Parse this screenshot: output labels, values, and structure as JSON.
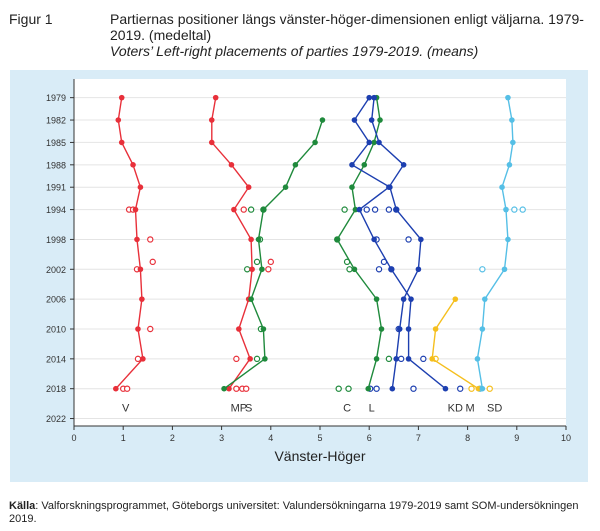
{
  "figure_label": "Figur 1",
  "title_sv": "Partiernas positioner längs vänster-höger-dimensionen enligt väljarna. 1979-2019. (medeltal)",
  "title_en": "Voters’ Left-right placements of parties 1979-2019. (means)",
  "source_label": "Källa",
  "source_text": ": Valforskningsprogrammet, Göteborgs universitet: Valundersökningarna 1979-2019 samt SOM-undersökningen 2019.",
  "chart_data": {
    "type": "line",
    "title": "Partiernas positioner längs vänster-höger-dimensionen enligt väljarna. 1979-2019. (medeltal)",
    "xlabel": "Vänster-Höger",
    "ylabel": "",
    "xlim": [
      0,
      10
    ],
    "ylim": [
      1976.5,
      2023
    ],
    "x_ticks": [
      0,
      1,
      2,
      3,
      4,
      5,
      6,
      7,
      8,
      9,
      10
    ],
    "y_ticks": [
      1979,
      1982,
      1985,
      1988,
      1991,
      1994,
      1998,
      2002,
      2006,
      2010,
      2014,
      2018,
      2022
    ],
    "series": [
      {
        "name": "V",
        "color": "#e8303a",
        "label_x": 1.05,
        "points": [
          [
            0.97,
            1979
          ],
          [
            0.9,
            1982
          ],
          [
            0.97,
            1985
          ],
          [
            1.2,
            1988
          ],
          [
            1.35,
            1991
          ],
          [
            1.25,
            1994
          ],
          [
            1.28,
            1998
          ],
          [
            1.35,
            2002
          ],
          [
            1.38,
            2006
          ],
          [
            1.3,
            2010
          ],
          [
            1.4,
            2014
          ],
          [
            0.85,
            2018
          ]
        ]
      },
      {
        "name": "MP",
        "color": "#e8303a",
        "label_x": 3.35,
        "points": [
          [
            2.88,
            1979
          ],
          [
            2.8,
            1982
          ],
          [
            2.8,
            1985
          ],
          [
            3.2,
            1988
          ],
          [
            3.55,
            1991
          ],
          [
            3.25,
            1994
          ],
          [
            3.6,
            1998
          ],
          [
            3.62,
            2002
          ],
          [
            3.55,
            2006
          ],
          [
            3.35,
            2010
          ],
          [
            3.58,
            2014
          ],
          [
            3.15,
            2018
          ]
        ]
      },
      {
        "name": "S",
        "color": "#1f8a3c",
        "label_x": 3.55,
        "points": [
          [
            5.05,
            1982
          ],
          [
            4.9,
            1985
          ],
          [
            4.5,
            1988
          ],
          [
            4.3,
            1991
          ],
          [
            3.85,
            1994
          ],
          [
            3.75,
            1998
          ],
          [
            3.82,
            2002
          ],
          [
            3.6,
            2006
          ],
          [
            3.85,
            2010
          ],
          [
            3.88,
            2014
          ],
          [
            3.05,
            2018
          ]
        ]
      },
      {
        "name": "C",
        "color": "#1f8a3c",
        "label_x": 5.55,
        "points": [
          [
            6.15,
            1979
          ],
          [
            6.22,
            1982
          ],
          [
            6.1,
            1985
          ],
          [
            5.9,
            1988
          ],
          [
            5.65,
            1991
          ],
          [
            5.72,
            1994
          ],
          [
            5.35,
            1998
          ],
          [
            5.7,
            2002
          ],
          [
            6.15,
            2006
          ],
          [
            6.25,
            2010
          ],
          [
            6.15,
            2014
          ],
          [
            5.98,
            2018
          ]
        ]
      },
      {
        "name": "L",
        "color": "#1d3fb0",
        "label_x": 6.05,
        "points": [
          [
            6.0,
            1979
          ],
          [
            5.7,
            1982
          ],
          [
            6.0,
            1985
          ],
          [
            5.65,
            1988
          ],
          [
            6.42,
            1991
          ],
          [
            6.55,
            1994
          ],
          [
            7.05,
            1998
          ],
          [
            7.0,
            2002
          ],
          [
            6.7,
            2006
          ],
          [
            6.62,
            2010
          ],
          [
            6.55,
            2014
          ],
          [
            6.47,
            2018
          ]
        ]
      },
      {
        "name": "M",
        "color": "#1d3fb0",
        "label_x": 8.05,
        "points": [
          [
            6.1,
            1979
          ],
          [
            6.05,
            1982
          ],
          [
            6.2,
            1985
          ],
          [
            6.7,
            1988
          ],
          [
            6.4,
            1991
          ],
          [
            5.8,
            1994
          ],
          [
            6.1,
            1998
          ],
          [
            6.45,
            2002
          ],
          [
            6.85,
            2006
          ],
          [
            6.8,
            2010
          ],
          [
            6.8,
            2014
          ],
          [
            7.55,
            2018
          ]
        ]
      },
      {
        "name": "KD",
        "color": "#f5bf1e",
        "label_x": 7.75,
        "points": [
          [
            7.75,
            2006
          ],
          [
            7.35,
            2010
          ],
          [
            7.28,
            2014
          ],
          [
            8.22,
            2018
          ]
        ]
      },
      {
        "name": "SD",
        "color": "#55bfe6",
        "label_x": 8.55,
        "points": [
          [
            8.82,
            1979
          ],
          [
            8.9,
            1982
          ],
          [
            8.92,
            1985
          ],
          [
            8.85,
            1988
          ],
          [
            8.7,
            1991
          ],
          [
            8.78,
            1994
          ],
          [
            8.82,
            1998
          ],
          [
            8.75,
            2002
          ],
          [
            8.35,
            2006
          ],
          [
            8.3,
            2010
          ],
          [
            8.2,
            2014
          ],
          [
            8.3,
            2018
          ]
        ]
      }
    ],
    "scatter": [
      {
        "color": "#e8303a",
        "points": [
          [
            1.12,
            1994
          ],
          [
            1.2,
            1994
          ],
          [
            1.55,
            1998
          ],
          [
            1.28,
            2002
          ],
          [
            1.6,
            2001
          ],
          [
            1.55,
            2010
          ],
          [
            1.3,
            2014
          ],
          [
            1.0,
            2018
          ],
          [
            1.08,
            2018
          ]
        ]
      },
      {
        "color": "#e8303a",
        "points": [
          [
            3.45,
            1994
          ],
          [
            3.95,
            2002
          ],
          [
            4.0,
            2001
          ],
          [
            3.3,
            2014
          ],
          [
            3.3,
            2018
          ],
          [
            3.42,
            2018
          ],
          [
            3.5,
            2018
          ]
        ]
      },
      {
        "color": "#1f8a3c",
        "points": [
          [
            3.6,
            1994
          ],
          [
            3.85,
            1994
          ],
          [
            3.78,
            1998
          ],
          [
            3.52,
            2002
          ],
          [
            3.72,
            2001
          ],
          [
            3.8,
            2010
          ],
          [
            3.72,
            2014
          ]
        ]
      },
      {
        "color": "#1f8a3c",
        "points": [
          [
            5.5,
            1994
          ],
          [
            5.35,
            1998
          ],
          [
            5.6,
            2002
          ],
          [
            5.55,
            2001
          ],
          [
            6.4,
            2014
          ],
          [
            5.38,
            2018
          ],
          [
            5.58,
            2018
          ]
        ]
      },
      {
        "color": "#1d3fb0",
        "points": [
          [
            5.95,
            1994
          ],
          [
            6.12,
            1994
          ],
          [
            6.4,
            1994
          ],
          [
            6.55,
            1994
          ],
          [
            6.15,
            1998
          ],
          [
            6.8,
            1998
          ],
          [
            6.2,
            2002
          ],
          [
            6.45,
            2002
          ],
          [
            6.3,
            2001
          ],
          [
            6.6,
            2010
          ],
          [
            6.65,
            2014
          ],
          [
            7.1,
            2014
          ],
          [
            6.02,
            2018
          ],
          [
            6.15,
            2018
          ],
          [
            6.9,
            2018
          ],
          [
            7.85,
            2018
          ]
        ]
      },
      {
        "color": "#f5bf1e",
        "points": [
          [
            7.35,
            2014
          ],
          [
            8.08,
            2018
          ],
          [
            8.45,
            2018
          ]
        ]
      },
      {
        "color": "#55bfe6",
        "points": [
          [
            9.12,
            1994
          ],
          [
            8.95,
            1994
          ],
          [
            8.3,
            2002
          ],
          [
            8.25,
            2018
          ]
        ]
      }
    ]
  }
}
